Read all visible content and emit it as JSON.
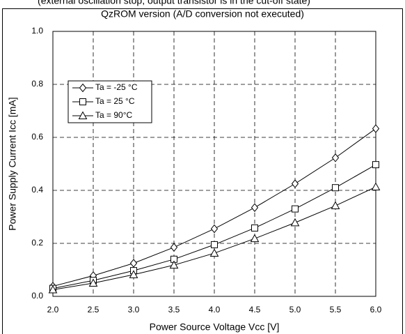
{
  "chart_data": {
    "type": "line",
    "subtitle": "(external oscillation stop, output transistor is in the cut-off state)",
    "title": "QzROM version (A/D conversion not executed)",
    "x_label": "Power Source Voltage Vcc [V]",
    "y_label": "Power Supply Current Icc [mA]",
    "x": [
      2.0,
      2.5,
      3.0,
      3.5,
      4.0,
      4.5,
      5.0,
      5.5,
      6.0
    ],
    "series": [
      {
        "name": "Ta = -25 °C",
        "color": "#000000",
        "marker": "diamond",
        "values": [
          0.038,
          0.078,
          0.125,
          0.185,
          0.255,
          0.335,
          0.425,
          0.523,
          0.633
        ]
      },
      {
        "name": "Ta = 25 °C",
        "color": "#000000",
        "marker": "square",
        "values": [
          0.03,
          0.06,
          0.097,
          0.14,
          0.195,
          0.258,
          0.33,
          0.41,
          0.497
        ]
      },
      {
        "name": "Ta = 90°C",
        "color": "#000000",
        "marker": "triangle",
        "values": [
          0.025,
          0.05,
          0.082,
          0.118,
          0.163,
          0.218,
          0.278,
          0.342,
          0.413
        ]
      }
    ],
    "xlim": [
      2.0,
      6.0
    ],
    "xticks": [
      {
        "value": 2.0,
        "label": "2.0"
      },
      {
        "value": 2.5,
        "label": "2.5"
      },
      {
        "value": 3.0,
        "label": "3.0"
      },
      {
        "value": 3.5,
        "label": "3.5"
      },
      {
        "value": 4.0,
        "label": "4.0"
      },
      {
        "value": 4.5,
        "label": "4.5"
      },
      {
        "value": 5.0,
        "label": "5.0"
      },
      {
        "value": 5.5,
        "label": "5.5"
      },
      {
        "value": 6.0,
        "label": "6.0"
      }
    ],
    "ylim": [
      0.0,
      1.0
    ],
    "yticks": [
      {
        "value": 0.0,
        "label": "0.0"
      },
      {
        "value": 0.2,
        "label": "0.2"
      },
      {
        "value": 0.4,
        "label": "0.4"
      },
      {
        "value": 0.6,
        "label": "0.6"
      },
      {
        "value": 0.8,
        "label": "0.8"
      },
      {
        "value": 1.0,
        "label": "1.0"
      }
    ],
    "grid": true,
    "legend": "upper left"
  }
}
